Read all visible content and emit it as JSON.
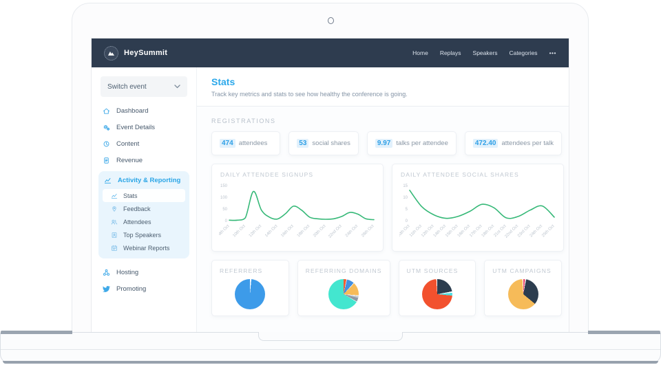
{
  "navbar": {
    "brand": "HeySummit",
    "links": [
      "Home",
      "Replays",
      "Speakers",
      "Categories"
    ],
    "more_label": "•••"
  },
  "sidebar": {
    "switch_event_label": "Switch event",
    "items_top": [
      {
        "icon": "home",
        "label": "Dashboard"
      },
      {
        "icon": "gears",
        "label": "Event Details"
      },
      {
        "icon": "clock",
        "label": "Content"
      },
      {
        "icon": "document",
        "label": "Revenue"
      }
    ],
    "activity_group": {
      "icon": "chart",
      "label": "Activity & Reporting",
      "children": [
        {
          "icon": "chart",
          "label": "Stats",
          "active": true
        },
        {
          "icon": "pin",
          "label": "Feedback"
        },
        {
          "icon": "users",
          "label": "Attendees"
        },
        {
          "icon": "badge",
          "label": "Top Speakers"
        },
        {
          "icon": "calendar",
          "label": "Webinar Reports"
        }
      ]
    },
    "items_bottom": [
      {
        "icon": "hosting",
        "label": "Hosting"
      },
      {
        "icon": "twitter",
        "label": "Promoting"
      }
    ]
  },
  "page": {
    "title": "Stats",
    "subtitle": "Track key metrics and stats to see how healthy the conference is going.",
    "section_label": "REGISTRATIONS"
  },
  "stats": [
    {
      "value": "474",
      "label": "attendees"
    },
    {
      "value": "53",
      "label": "social shares"
    },
    {
      "value": "9.97",
      "label": "talks per attendee"
    },
    {
      "value": "472.40",
      "label": "attendees per talk"
    }
  ],
  "colors": {
    "navbar": "#2e3c4f",
    "accent_blue": "#2aa7ea",
    "line_green": "#35b877",
    "pie_blue": "#3d9be9",
    "pie_teal": "#43e6cf",
    "pie_red": "#f2512e",
    "pie_amber": "#f6bb59",
    "pie_navy": "#2c3d4f",
    "pie_pink": "#e84a6e"
  },
  "chart_data": [
    {
      "type": "line",
      "title": "DAILY ATTENDEE SIGNUPS",
      "x": [
        "8th Oct",
        "9th Oct",
        "10th Oct",
        "11th Oct",
        "12th Oct",
        "13th Oct",
        "14th Oct",
        "15th Oct",
        "16th Oct",
        "17th Oct",
        "18th Oct",
        "19th Oct",
        "20th Oct",
        "21st Oct",
        "22nd Oct",
        "23rd Oct",
        "24th Oct",
        "25th Oct",
        "26th Oct"
      ],
      "values": [
        2,
        2,
        12,
        125,
        45,
        15,
        7,
        30,
        62,
        45,
        15,
        8,
        6,
        8,
        18,
        35,
        28,
        8,
        4
      ],
      "tick_every": 2,
      "ylim": [
        0,
        150
      ],
      "yticks": [
        0,
        50,
        100,
        150
      ],
      "color": "#35b877"
    },
    {
      "type": "line",
      "title": "DAILY ATTENDEE SOCIAL SHARES",
      "x": [
        "10th Oct",
        "11th Oct",
        "12th Oct",
        "14th Oct",
        "15th Oct",
        "16th Oct",
        "17th Oct",
        "18th Oct",
        "21st Oct",
        "22nd Oct",
        "23rd Oct",
        "24th Oct",
        "25th Oct"
      ],
      "values": [
        13,
        6,
        2.5,
        1,
        1.8,
        4,
        7,
        5.5,
        1.2,
        1.8,
        4.5,
        6.3,
        1.5
      ],
      "tick_every": 1,
      "ylim": [
        0,
        15
      ],
      "yticks": [
        0,
        5,
        10,
        15
      ],
      "color": "#35b877"
    },
    {
      "type": "pie",
      "title": "REFERRERS",
      "slices": [
        {
          "label": "other",
          "color": "#ffffff",
          "pct": 1.5
        },
        {
          "label": "primary",
          "color": "#3d9be9",
          "pct": 98.5
        }
      ]
    },
    {
      "type": "pie",
      "title": "REFERRING DOMAINS",
      "slices": [
        {
          "label": "domain-1",
          "color": "#f25c33",
          "pct": 3
        },
        {
          "label": "gap-1",
          "color": "#ffffff",
          "pct": 0.6
        },
        {
          "label": "domain-2",
          "color": "#448fe0",
          "pct": 8
        },
        {
          "label": "gap-2",
          "color": "#ffffff",
          "pct": 0.6
        },
        {
          "label": "domain-3",
          "color": "#f6bb59",
          "pct": 14
        },
        {
          "label": "gap-3",
          "color": "#ffffff",
          "pct": 0.8
        },
        {
          "label": "domain-4",
          "color": "#c3cad2",
          "pct": 2
        },
        {
          "label": "domain-5",
          "color": "#8e99a5",
          "pct": 4
        },
        {
          "label": "gap-4",
          "color": "#ffffff",
          "pct": 0.6
        },
        {
          "label": "domain-6",
          "color": "#43e6cf",
          "pct": 66.4
        }
      ]
    },
    {
      "type": "pie",
      "title": "UTM SOURCES",
      "slices": [
        {
          "label": "source-1",
          "color": "#2c3d4f",
          "pct": 22
        },
        {
          "label": "gap-1",
          "color": "#ffffff",
          "pct": 1.5
        },
        {
          "label": "source-2",
          "color": "#4fdfe2",
          "pct": 3
        },
        {
          "label": "source-3",
          "color": "#f2512e",
          "pct": 72.5
        },
        {
          "label": "gap-2",
          "color": "#ffffff",
          "pct": 1
        }
      ]
    },
    {
      "type": "pie",
      "title": "UTM CAMPAIGNS",
      "slices": [
        {
          "label": "campaign-1",
          "color": "#e84a6e",
          "pct": 2
        },
        {
          "label": "gap-1",
          "color": "#ffffff",
          "pct": 1
        },
        {
          "label": "campaign-2",
          "color": "#2c3d4f",
          "pct": 33
        },
        {
          "label": "campaign-3",
          "color": "#f6bb59",
          "pct": 63
        },
        {
          "label": "gap-2",
          "color": "#ffffff",
          "pct": 1
        }
      ]
    }
  ]
}
